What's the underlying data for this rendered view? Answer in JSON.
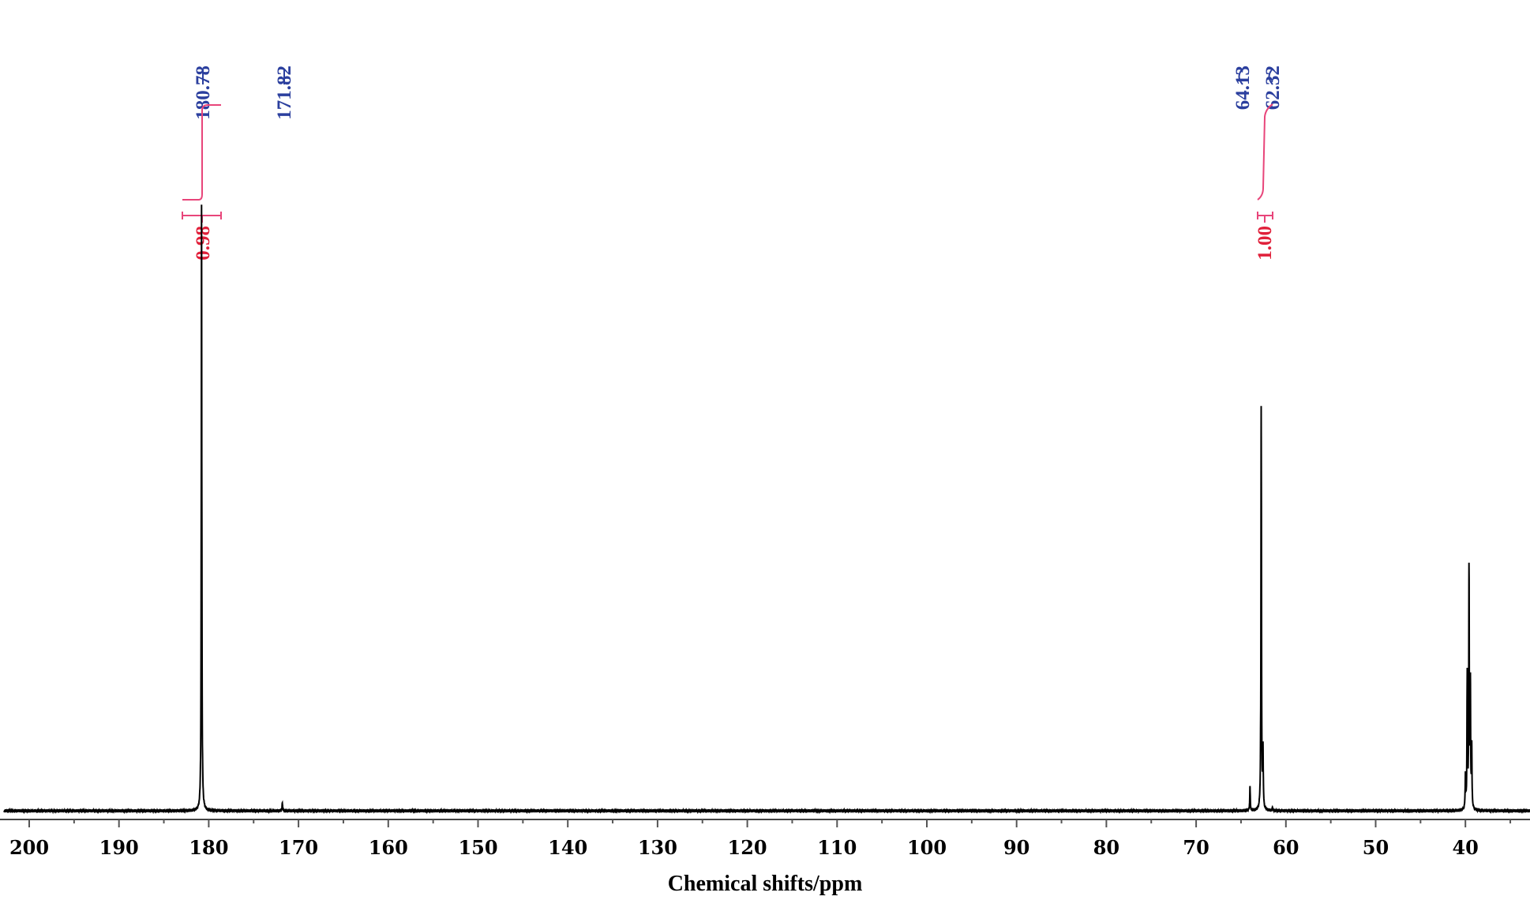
{
  "chart_data": {
    "type": "line",
    "title": "",
    "xlabel": "Chemical shifts/ppm",
    "ylabel": "",
    "xlim": [
      202.8,
      32.8
    ],
    "x_reversed": true,
    "grid": false,
    "x_ticks": [
      200,
      190,
      180,
      170,
      160,
      150,
      140,
      130,
      120,
      110,
      100,
      90,
      80,
      70,
      60,
      50,
      40
    ],
    "x_minor_ticks": [
      195,
      185,
      175,
      165,
      155,
      145,
      135,
      125,
      115,
      105,
      95,
      85,
      75,
      65,
      55,
      45,
      35
    ],
    "peaks": [
      {
        "ppm": 180.8,
        "intensity": 1.0
      },
      {
        "ppm": 171.8,
        "intensity": 0.014
      },
      {
        "ppm": 64.0,
        "intensity": 0.04
      },
      {
        "ppm": 62.75,
        "intensity": 0.665
      },
      {
        "ppm": 62.55,
        "intensity": 0.095
      },
      {
        "ppm": 61.5,
        "intensity": 0.006
      },
      {
        "ppm": 40.0,
        "intensity": 0.055
      },
      {
        "ppm": 39.8,
        "intensity": 0.22
      },
      {
        "ppm": 39.6,
        "intensity": 0.39
      },
      {
        "ppm": 39.45,
        "intensity": 0.2
      },
      {
        "ppm": 39.3,
        "intensity": 0.1
      }
    ],
    "peak_labels": [
      {
        "ppm": 180.78,
        "text": "180.78",
        "connector": "straight"
      },
      {
        "ppm": 171.82,
        "text": "171.82",
        "connector": "straight"
      },
      {
        "ppm": 64.13,
        "text": "64.13",
        "connector": "curved"
      },
      {
        "ppm": 62.32,
        "text": "62.32",
        "connector": "curved"
      }
    ],
    "integrals": [
      {
        "from_ppm": 183.9,
        "to_ppm": 179.6,
        "value": "0.98"
      },
      {
        "from_ppm": 62.0,
        "to_ppm": 63.8,
        "value": "1.00"
      }
    ],
    "colors": {
      "spectrum": "#000000",
      "peak_labels": "#2b3f9e",
      "integral_curve": "#e8457a",
      "integral_text": "#e0203a"
    }
  }
}
